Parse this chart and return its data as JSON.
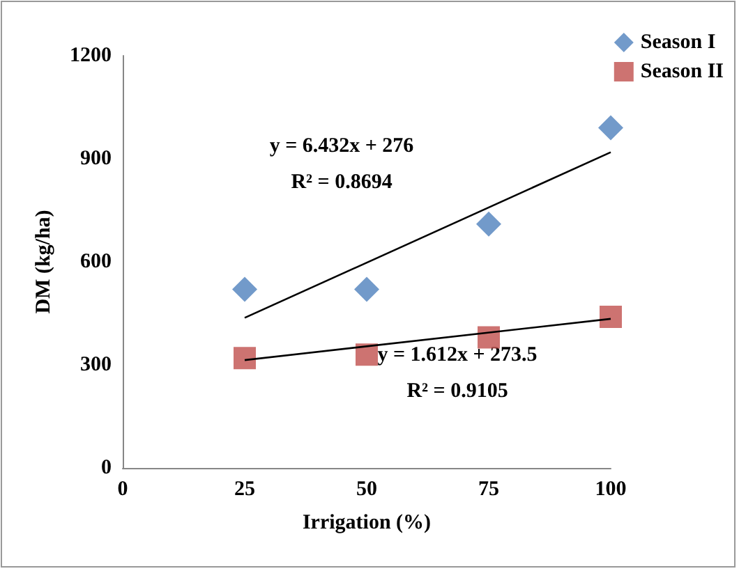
{
  "chart_data": {
    "type": "scatter",
    "xlabel": "Irrigation (%)",
    "ylabel": "DM (kg/ha)",
    "xlim": [
      0,
      100
    ],
    "xticks": [
      0,
      25,
      50,
      75,
      100
    ],
    "ylim": [
      0,
      1200
    ],
    "yticks": [
      0,
      300,
      600,
      900,
      1200
    ],
    "grid": false,
    "legend": "top right",
    "series": [
      {
        "name": "Season I",
        "color": "#4f81bd",
        "marker": "diamond",
        "x": [
          25,
          50,
          75,
          100
        ],
        "values": [
          520,
          520,
          710,
          990
        ]
      },
      {
        "name": "Season II",
        "color": "#c0504d",
        "marker": "square",
        "x": [
          25,
          50,
          75,
          100
        ],
        "values": [
          320,
          330,
          380,
          440
        ]
      },
      {
        "type": "line",
        "color": "#000000",
        "marker": "none",
        "x": [
          25,
          100
        ],
        "values": [
          437,
          919
        ]
      },
      {
        "type": "line",
        "color": "#000000",
        "marker": "none",
        "x": [
          25,
          100
        ],
        "values": [
          314,
          434
        ]
      }
    ],
    "annotations": [
      "y = 6.432x + 276\nR² = 0.8694",
      "y = 1.612x + 273.5\nR² = 0.9105"
    ]
  }
}
